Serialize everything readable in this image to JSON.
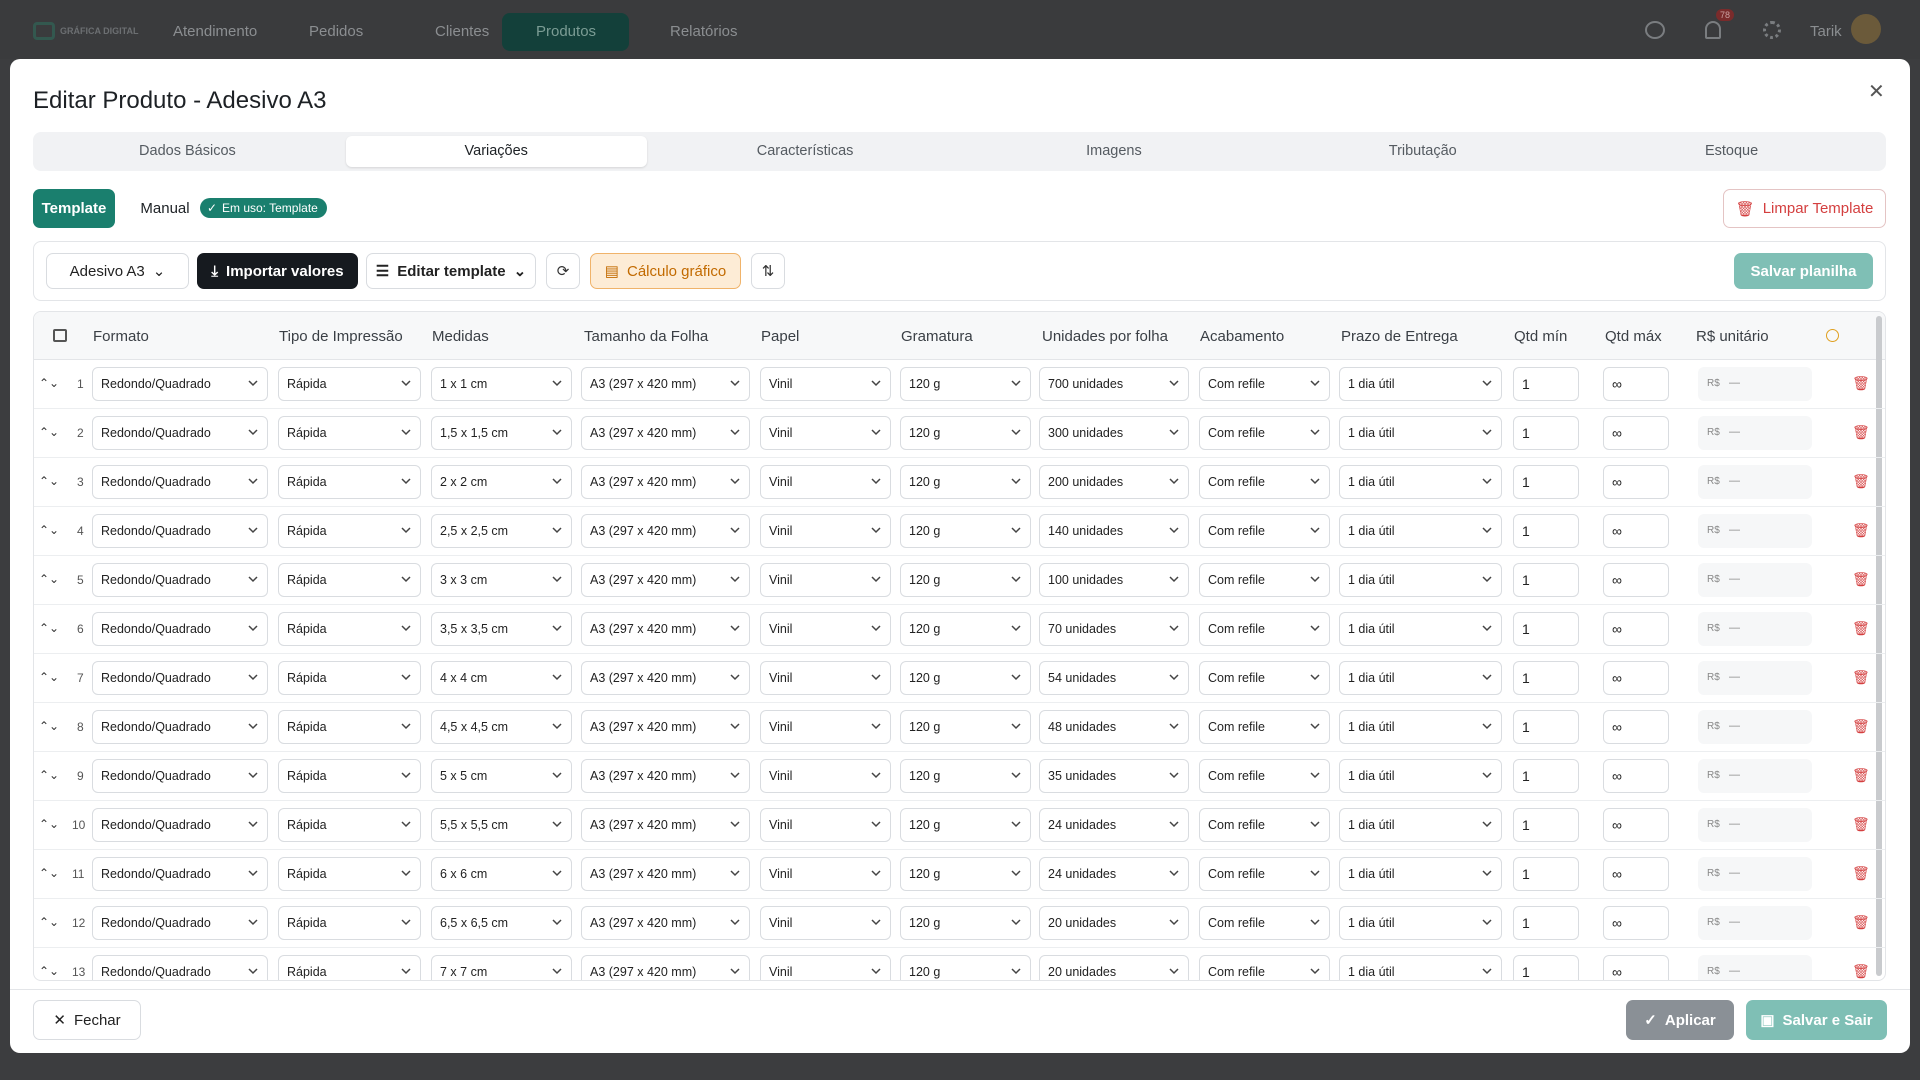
{
  "nav": {
    "logo": "GRÁFICA DIGITAL",
    "items": [
      "Atendimento",
      "Pedidos",
      "Clientes",
      "Produtos",
      "Relatórios"
    ],
    "notifications": "78",
    "user": "Tarik"
  },
  "modal": {
    "title": "Editar Produto - Adesivo A3",
    "tabs": [
      "Dados Básicos",
      "Variações",
      "Características",
      "Imagens",
      "Tributação",
      "Estoque"
    ]
  },
  "mode": {
    "template": "Template",
    "manual": "Manual",
    "badge": "Em uso: Template",
    "clear": "Limpar Template"
  },
  "toolbar": {
    "product": "Adesivo A3",
    "import": "Importar valores",
    "edit": "Editar template",
    "calc": "Cálculo gráfico",
    "save": "Salvar planilha"
  },
  "table": {
    "columns": [
      "Formato",
      "Tipo de Impressão",
      "Medidas",
      "Tamanho da Folha",
      "Papel",
      "Gramatura",
      "Unidades por folha",
      "Acabamento",
      "Prazo de Entrega",
      "Qtd mín",
      "Qtd máx",
      "R$ unitário"
    ],
    "rows": [
      [
        "1",
        "Redondo/Quadrado",
        "Rápida",
        "1 x 1 cm",
        "A3 (297 x 420 mm)",
        "Vinil",
        "120 g",
        "700 unidades",
        "Com refile",
        "1 dia útil",
        "1",
        "∞",
        "R$",
        "—"
      ],
      [
        "2",
        "Redondo/Quadrado",
        "Rápida",
        "1,5 x 1,5 cm",
        "A3 (297 x 420 mm)",
        "Vinil",
        "120 g",
        "300 unidades",
        "Com refile",
        "1 dia útil",
        "1",
        "∞",
        "R$",
        "—"
      ],
      [
        "3",
        "Redondo/Quadrado",
        "Rápida",
        "2 x 2 cm",
        "A3 (297 x 420 mm)",
        "Vinil",
        "120 g",
        "200 unidades",
        "Com refile",
        "1 dia útil",
        "1",
        "∞",
        "R$",
        "—"
      ],
      [
        "4",
        "Redondo/Quadrado",
        "Rápida",
        "2,5 x 2,5 cm",
        "A3 (297 x 420 mm)",
        "Vinil",
        "120 g",
        "140 unidades",
        "Com refile",
        "1 dia útil",
        "1",
        "∞",
        "R$",
        "—"
      ],
      [
        "5",
        "Redondo/Quadrado",
        "Rápida",
        "3 x 3 cm",
        "A3 (297 x 420 mm)",
        "Vinil",
        "120 g",
        "100 unidades",
        "Com refile",
        "1 dia útil",
        "1",
        "∞",
        "R$",
        "—"
      ],
      [
        "6",
        "Redondo/Quadrado",
        "Rápida",
        "3,5 x 3,5 cm",
        "A3 (297 x 420 mm)",
        "Vinil",
        "120 g",
        "70 unidades",
        "Com refile",
        "1 dia útil",
        "1",
        "∞",
        "R$",
        "—"
      ],
      [
        "7",
        "Redondo/Quadrado",
        "Rápida",
        "4 x 4 cm",
        "A3 (297 x 420 mm)",
        "Vinil",
        "120 g",
        "54 unidades",
        "Com refile",
        "1 dia útil",
        "1",
        "∞",
        "R$",
        "—"
      ],
      [
        "8",
        "Redondo/Quadrado",
        "Rápida",
        "4,5 x 4,5 cm",
        "A3 (297 x 420 mm)",
        "Vinil",
        "120 g",
        "48 unidades",
        "Com refile",
        "1 dia útil",
        "1",
        "∞",
        "R$",
        "—"
      ],
      [
        "9",
        "Redondo/Quadrado",
        "Rápida",
        "5 x 5 cm",
        "A3 (297 x 420 mm)",
        "Vinil",
        "120 g",
        "35 unidades",
        "Com refile",
        "1 dia útil",
        "1",
        "∞",
        "R$",
        "—"
      ],
      [
        "10",
        "Redondo/Quadrado",
        "Rápida",
        "5,5 x 5,5 cm",
        "A3 (297 x 420 mm)",
        "Vinil",
        "120 g",
        "24 unidades",
        "Com refile",
        "1 dia útil",
        "1",
        "∞",
        "R$",
        "—"
      ],
      [
        "11",
        "Redondo/Quadrado",
        "Rápida",
        "6 x 6 cm",
        "A3 (297 x 420 mm)",
        "Vinil",
        "120 g",
        "24 unidades",
        "Com refile",
        "1 dia útil",
        "1",
        "∞",
        "R$",
        "—"
      ],
      [
        "12",
        "Redondo/Quadrado",
        "Rápida",
        "6,5 x 6,5 cm",
        "A3 (297 x 420 mm)",
        "Vinil",
        "120 g",
        "20 unidades",
        "Com refile",
        "1 dia útil",
        "1",
        "∞",
        "R$",
        "—"
      ],
      [
        "13",
        "Redondo/Quadrado",
        "Rápida",
        "7 x 7 cm",
        "A3 (297 x 420 mm)",
        "Vinil",
        "120 g",
        "20 unidades",
        "Com refile",
        "1 dia útil",
        "1",
        "∞",
        "R$",
        "—"
      ]
    ]
  },
  "footer": {
    "close": "Fechar",
    "apply": "Aplicar",
    "save_exit": "Salvar e Sair"
  }
}
